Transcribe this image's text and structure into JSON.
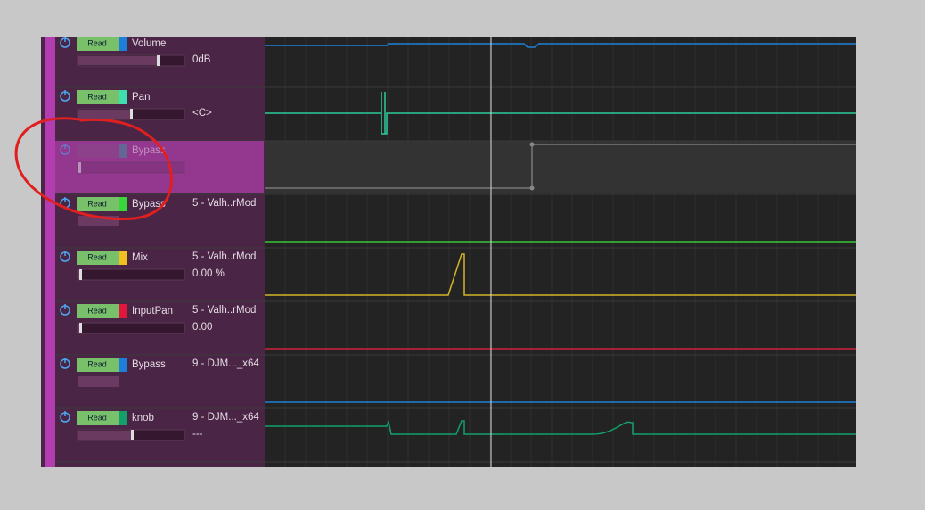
{
  "lanes": [
    {
      "mode": "Read",
      "name": "Volume",
      "value": "0dB",
      "color": "#1e7fd8"
    },
    {
      "mode": "Read",
      "name": "Pan",
      "value": "<C>",
      "color": "#3ee0b0"
    },
    {
      "name": "Bypass",
      "color": "#3f8f9a"
    },
    {
      "mode": "Read",
      "name": "Bypass",
      "source": "5 - Valh..rMod",
      "color": "#39d639"
    },
    {
      "mode": "Read",
      "name": "Mix",
      "source": "5 - Valh..rMod",
      "value": "0.00 %",
      "color": "#f0c020"
    },
    {
      "mode": "Read",
      "name": "InputPan",
      "source": "5 - Valh..rMod",
      "value": "0.00",
      "color": "#e0163c"
    },
    {
      "mode": "Read",
      "name": "Bypass",
      "source": "9 - DJM..._x64",
      "color": "#1e7fd8"
    },
    {
      "mode": "Read",
      "name": "knob",
      "source": "9 - DJM..._x64",
      "value": "---",
      "color": "#13a06a"
    }
  ]
}
